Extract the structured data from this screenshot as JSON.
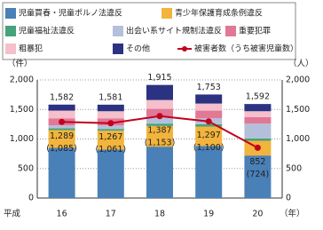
{
  "chart_data": {
    "type": "stacked_bar_line",
    "x_prefix": "平成",
    "x_unit": "（年）",
    "y_unit": "（件）",
    "y2_unit": "（人）",
    "categories": [
      "16",
      "17",
      "18",
      "19",
      "20"
    ],
    "ylim": [
      0,
      2000
    ],
    "yticks": [
      0,
      500,
      {
        "value": 1000,
        "label": "1,000"
      },
      {
        "value": 1500,
        "label": "1,500"
      },
      {
        "value": 2000,
        "label": "2,000"
      }
    ],
    "y2lim": [
      0,
      2000
    ],
    "y2ticks": [
      0,
      500,
      {
        "value": 1000,
        "label": "1,000"
      },
      {
        "value": 1500,
        "label": "1,500"
      },
      {
        "value": 2000,
        "label": "2,000"
      }
    ],
    "series": [
      {
        "name": "児童買春・児童ポルノ法違反",
        "color": "#4a80b8",
        "values": [
          850,
          820,
          870,
          880,
          720
        ]
      },
      {
        "name": "青少年保護育成条例違反",
        "color": "#f2b43c",
        "values": [
          300,
          320,
          350,
          330,
          250
        ]
      },
      {
        "name": "児童福祉法違反",
        "color": "#45a27a",
        "values": [
          30,
          30,
          40,
          40,
          40
        ]
      },
      {
        "name": "出会い系サイト規制法違反",
        "color": "#b4c0da",
        "values": [
          50,
          60,
          120,
          100,
          250
        ]
      },
      {
        "name": "重要犯罪",
        "color": "#e07896",
        "values": [
          120,
          120,
          130,
          130,
          110
        ]
      },
      {
        "name": "粗暴犯",
        "color": "#f5bfcb",
        "values": [
          130,
          120,
          150,
          120,
          100
        ]
      },
      {
        "name": "その他",
        "color": "#2b3282",
        "values": [
          102,
          111,
          255,
          153,
          122
        ]
      }
    ],
    "totals": {
      "values": [
        1582,
        1581,
        1915,
        1753,
        1592
      ],
      "value_labels": [
        "1,582",
        "1,581",
        "1,915",
        "1,753",
        "1,592"
      ]
    },
    "line": {
      "name": "被害者数（うち被害児童数）",
      "color": "#c4001c",
      "axis": "y2",
      "values": [
        1289,
        1267,
        1387,
        1297,
        852
      ],
      "value_labels": [
        "1,289",
        "1,267",
        "1,387",
        "1,297",
        "852"
      ]
    },
    "children": {
      "values": [
        1085,
        1061,
        1153,
        1100,
        724
      ],
      "value_labels": [
        "(1,085)",
        "(1,061)",
        "(1,153)",
        "(1,100)",
        "(724)"
      ]
    }
  }
}
